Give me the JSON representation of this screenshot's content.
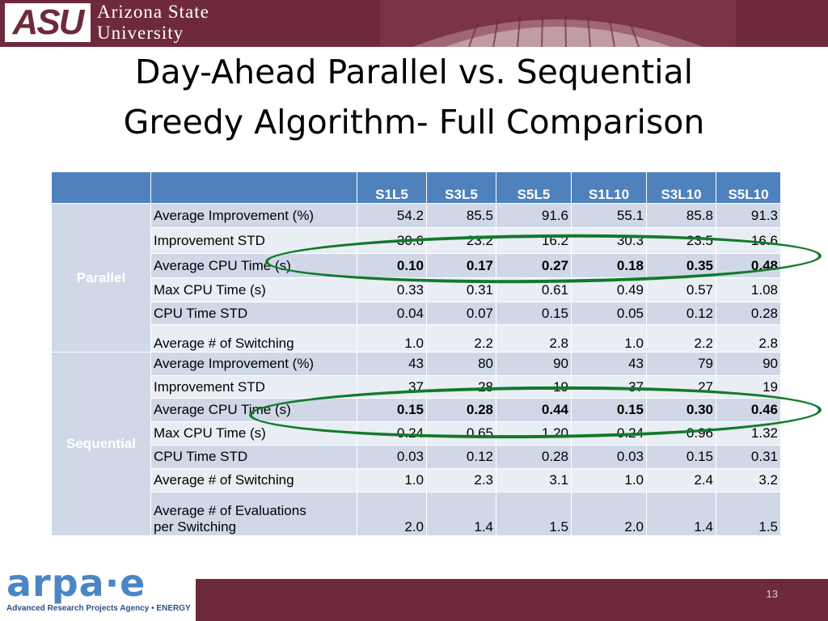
{
  "header": {
    "logo_mark": "ASU",
    "university_line1": "Arizona State",
    "university_line2": "University"
  },
  "slide": {
    "title_line1": "Day-Ahead Parallel vs. Sequential",
    "title_line2": "Greedy Algorithm- Full Comparison",
    "page_number": "13"
  },
  "footer": {
    "arpae_logo_text": "arpa·e",
    "arpae_subtitle": "Advanced Research Projects Agency • ENERGY"
  },
  "table": {
    "columns": [
      "S1L5",
      "S3L5",
      "S5L5",
      "S1L10",
      "S3L10",
      "S5L10"
    ],
    "groups": [
      {
        "name": "Parallel",
        "rows": [
          {
            "metric": "Average Improvement (%)",
            "values": [
              "54.2",
              "85.5",
              "91.6",
              "55.1",
              "85.8",
              "91.3"
            ]
          },
          {
            "metric": "Improvement STD",
            "values": [
              "30.6",
              "23.2",
              "16.2",
              "30.3",
              "23.5",
              "16.6"
            ]
          },
          {
            "metric": "Average CPU Time (s)",
            "values": [
              "0.10",
              "0.17",
              "0.27",
              "0.18",
              "0.35",
              "0.48"
            ]
          },
          {
            "metric": "Max CPU Time (s)",
            "values": [
              "0.33",
              "0.31",
              "0.61",
              "0.49",
              "0.57",
              "1.08"
            ]
          },
          {
            "metric": "CPU Time STD",
            "values": [
              "0.04",
              "0.07",
              "0.15",
              "0.05",
              "0.12",
              "0.28"
            ]
          },
          {
            "metric": "Average # of Switching",
            "values": [
              "1.0",
              "2.2",
              "2.8",
              "1.0",
              "2.2",
              "2.8"
            ]
          }
        ]
      },
      {
        "name": "Sequential",
        "rows": [
          {
            "metric": "Average Improvement (%)",
            "values": [
              "43",
              "80",
              "90",
              "43",
              "79",
              "90"
            ]
          },
          {
            "metric": "Improvement STD",
            "values": [
              "37",
              "28",
              "19",
              "37",
              "27",
              "19"
            ]
          },
          {
            "metric": "Average CPU Time (s)",
            "values": [
              "0.15",
              "0.28",
              "0.44",
              "0.15",
              "0.30",
              "0.46"
            ]
          },
          {
            "metric": "Max CPU Time (s)",
            "values": [
              "0.24",
              "0.65",
              "1.20",
              "0.24",
              "0.96",
              "1.32"
            ]
          },
          {
            "metric": "CPU Time STD",
            "values": [
              "0.03",
              "0.12",
              "0.28",
              "0.03",
              "0.15",
              "0.31"
            ]
          },
          {
            "metric": "Average # of Switching",
            "values": [
              "1.0",
              "2.3",
              "3.1",
              "1.0",
              "2.4",
              "3.2"
            ]
          },
          {
            "metric_line1": "Average # of Evaluations",
            "metric_line2": "per Switching",
            "values": [
              "2.0",
              "1.4",
              "1.5",
              "2.0",
              "1.4",
              "1.5"
            ]
          }
        ]
      }
    ],
    "highlight_color": "#117a2a"
  },
  "colors": {
    "maroon": "#6e2a3c",
    "table_header": "#4f81bd",
    "row_band_dark": "#d0d8e8",
    "row_band_light": "#e9edf4"
  }
}
